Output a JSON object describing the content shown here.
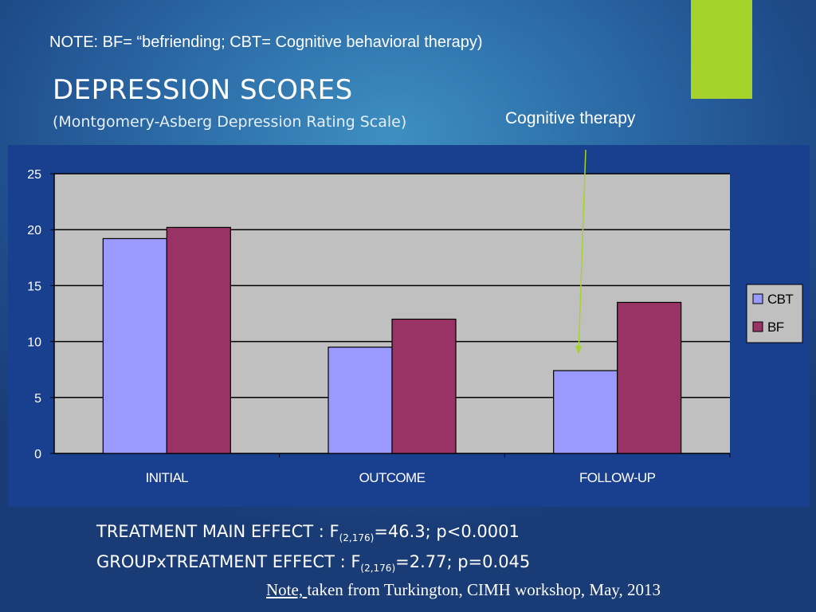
{
  "note_top": "NOTE: BF= “befriending; CBT= Cognitive behavioral therapy)",
  "title": "DEPRESSION SCORES",
  "subtitle": "(Montgomery-Asberg Depression Rating Scale)",
  "annotation": {
    "label": "Cognitive therapy",
    "arrow_color": "#a6d32b"
  },
  "accent_color": "#a6d32b",
  "stats": {
    "line1": {
      "prefix": "TREATMENT MAIN EFFECT : F",
      "sub": "(2,176)",
      "suffix": "=46.3; p<0.0001"
    },
    "line2": {
      "prefix": "GROUPxTREATMENT EFFECT : F",
      "sub": "(2,176)",
      "suffix": "=2.77; p=0.045"
    }
  },
  "footnote": {
    "underlined": "Note, ",
    "rest": "taken from Turkington, CIMH workshop, May, 2013"
  },
  "chart_data": {
    "type": "bar",
    "categories": [
      "INITIAL",
      "OUTCOME",
      "FOLLOW-UP"
    ],
    "series": [
      {
        "name": "CBT",
        "values": [
          19.2,
          9.5,
          7.4
        ],
        "color": "#9999ff"
      },
      {
        "name": "BF",
        "values": [
          20.2,
          12.0,
          13.5
        ],
        "color": "#993366"
      }
    ],
    "ylim": [
      0,
      25
    ],
    "yticks": [
      0,
      5,
      10,
      15,
      20,
      25
    ],
    "grid": true,
    "plot_background": "#c0c0c0",
    "legend_position": "right",
    "annotated_category": "FOLLOW-UP",
    "annotated_series": "CBT"
  }
}
